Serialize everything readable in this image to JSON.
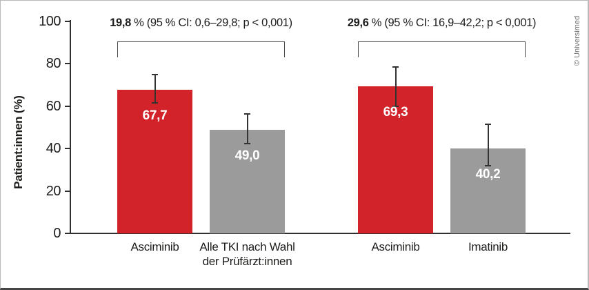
{
  "credit": "© Universimed",
  "colors": {
    "background": "#ffffff",
    "bar_red": "#d2232a",
    "bar_gray": "#9b9b9b",
    "axis": "#2f2f2f",
    "text": "#1d1d1b",
    "value_label": "#ffffff",
    "error_bar": "#333333",
    "bracket": "#4a4a4a",
    "credit_text": "#6f6f6f",
    "frame_border": "#b9b9b9",
    "frame_bottom": "#464646"
  },
  "chart_data": {
    "type": "bar",
    "title": "",
    "xlabel": "",
    "ylabel": "Patient:innen (%)",
    "ylim": [
      0,
      100
    ],
    "yticks": [
      0,
      20,
      40,
      60,
      80,
      100
    ],
    "grid": false,
    "legend": null,
    "groups": [
      {
        "annotation_bold": "19,8",
        "annotation_rest": " % (95 % CI: 0,6–29,8; p < 0,001)",
        "bars": [
          {
            "label_lines": [
              "Asciminib"
            ],
            "value": 67.7,
            "value_label": "67,7",
            "color": "red",
            "ci_low": 61.5,
            "ci_high": 75.0
          },
          {
            "label_lines": [
              "Alle TKI nach Wahl",
              "der Prüfärzt:innen"
            ],
            "value": 49.0,
            "value_label": "49,0",
            "color": "gray",
            "ci_low": 42.5,
            "ci_high": 56.5
          }
        ]
      },
      {
        "annotation_bold": "29,6",
        "annotation_rest": " % (95 % CI: 16,9–42,2; p < 0,001)",
        "bars": [
          {
            "label_lines": [
              "Asciminib"
            ],
            "value": 69.3,
            "value_label": "69,3",
            "color": "red",
            "ci_low": 60.0,
            "ci_high": 78.5
          },
          {
            "label_lines": [
              "Imatinib"
            ],
            "value": 40.2,
            "value_label": "40,2",
            "color": "gray",
            "ci_low": 32.0,
            "ci_high": 51.5
          }
        ]
      }
    ]
  }
}
